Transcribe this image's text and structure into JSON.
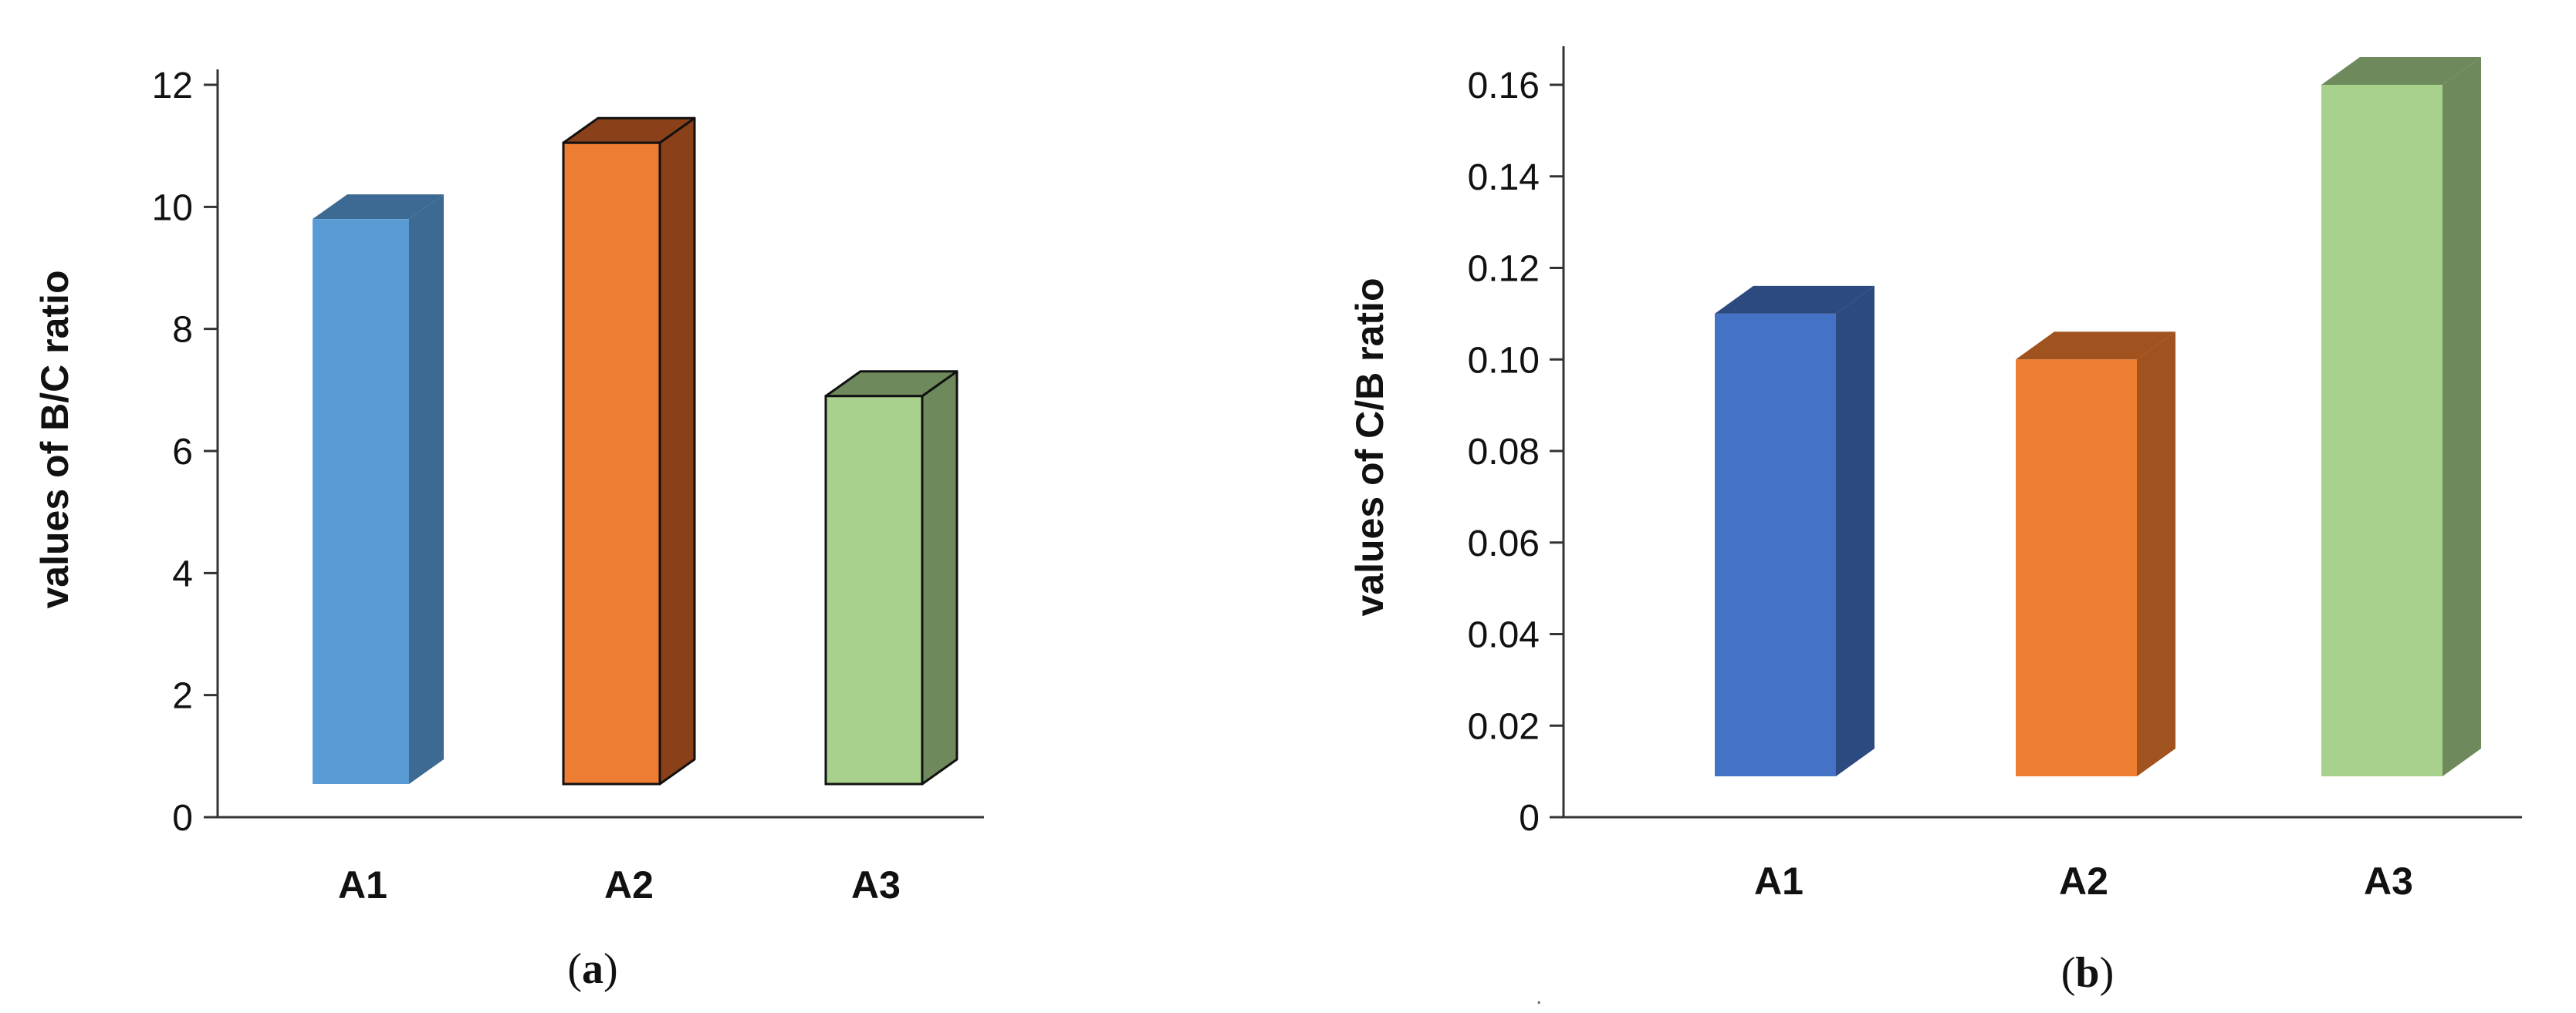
{
  "chart_data": [
    {
      "type": "bar",
      "panel_label": "a",
      "ylabel": "values of B/C ratio",
      "categories": [
        "A1",
        "A2",
        "A3"
      ],
      "values": [
        9.8,
        11.05,
        6.9
      ],
      "ylim": [
        0,
        12
      ],
      "yticks": [
        "0",
        "2",
        "4",
        "6",
        "8",
        "10",
        "12"
      ],
      "grid": false,
      "bar_colors": [
        "#5b9bd5",
        "#ed7d31",
        "#a9d18e"
      ],
      "side_colors": [
        "#3c6a92",
        "#8a4019",
        "#6e8a5c"
      ],
      "outlined": [
        false,
        true,
        true
      ]
    },
    {
      "type": "bar",
      "panel_label": "b",
      "ylabel": "values of C/B ratio",
      "categories": [
        "A1",
        "A2",
        "A3"
      ],
      "values": [
        0.11,
        0.1,
        0.16
      ],
      "ylim": [
        0,
        0.16
      ],
      "yticks": [
        "0",
        "0.02",
        "0.04",
        "0.06",
        "0.08",
        "0.10",
        "0.12",
        "0.14",
        "0.16"
      ],
      "grid": false,
      "bar_colors": [
        "#4472c4",
        "#ed7d31",
        "#a9d18e"
      ],
      "side_colors": [
        "#2c4a80",
        "#a0521f",
        "#6e8a5c"
      ],
      "outlined": [
        false,
        false,
        false
      ]
    }
  ]
}
